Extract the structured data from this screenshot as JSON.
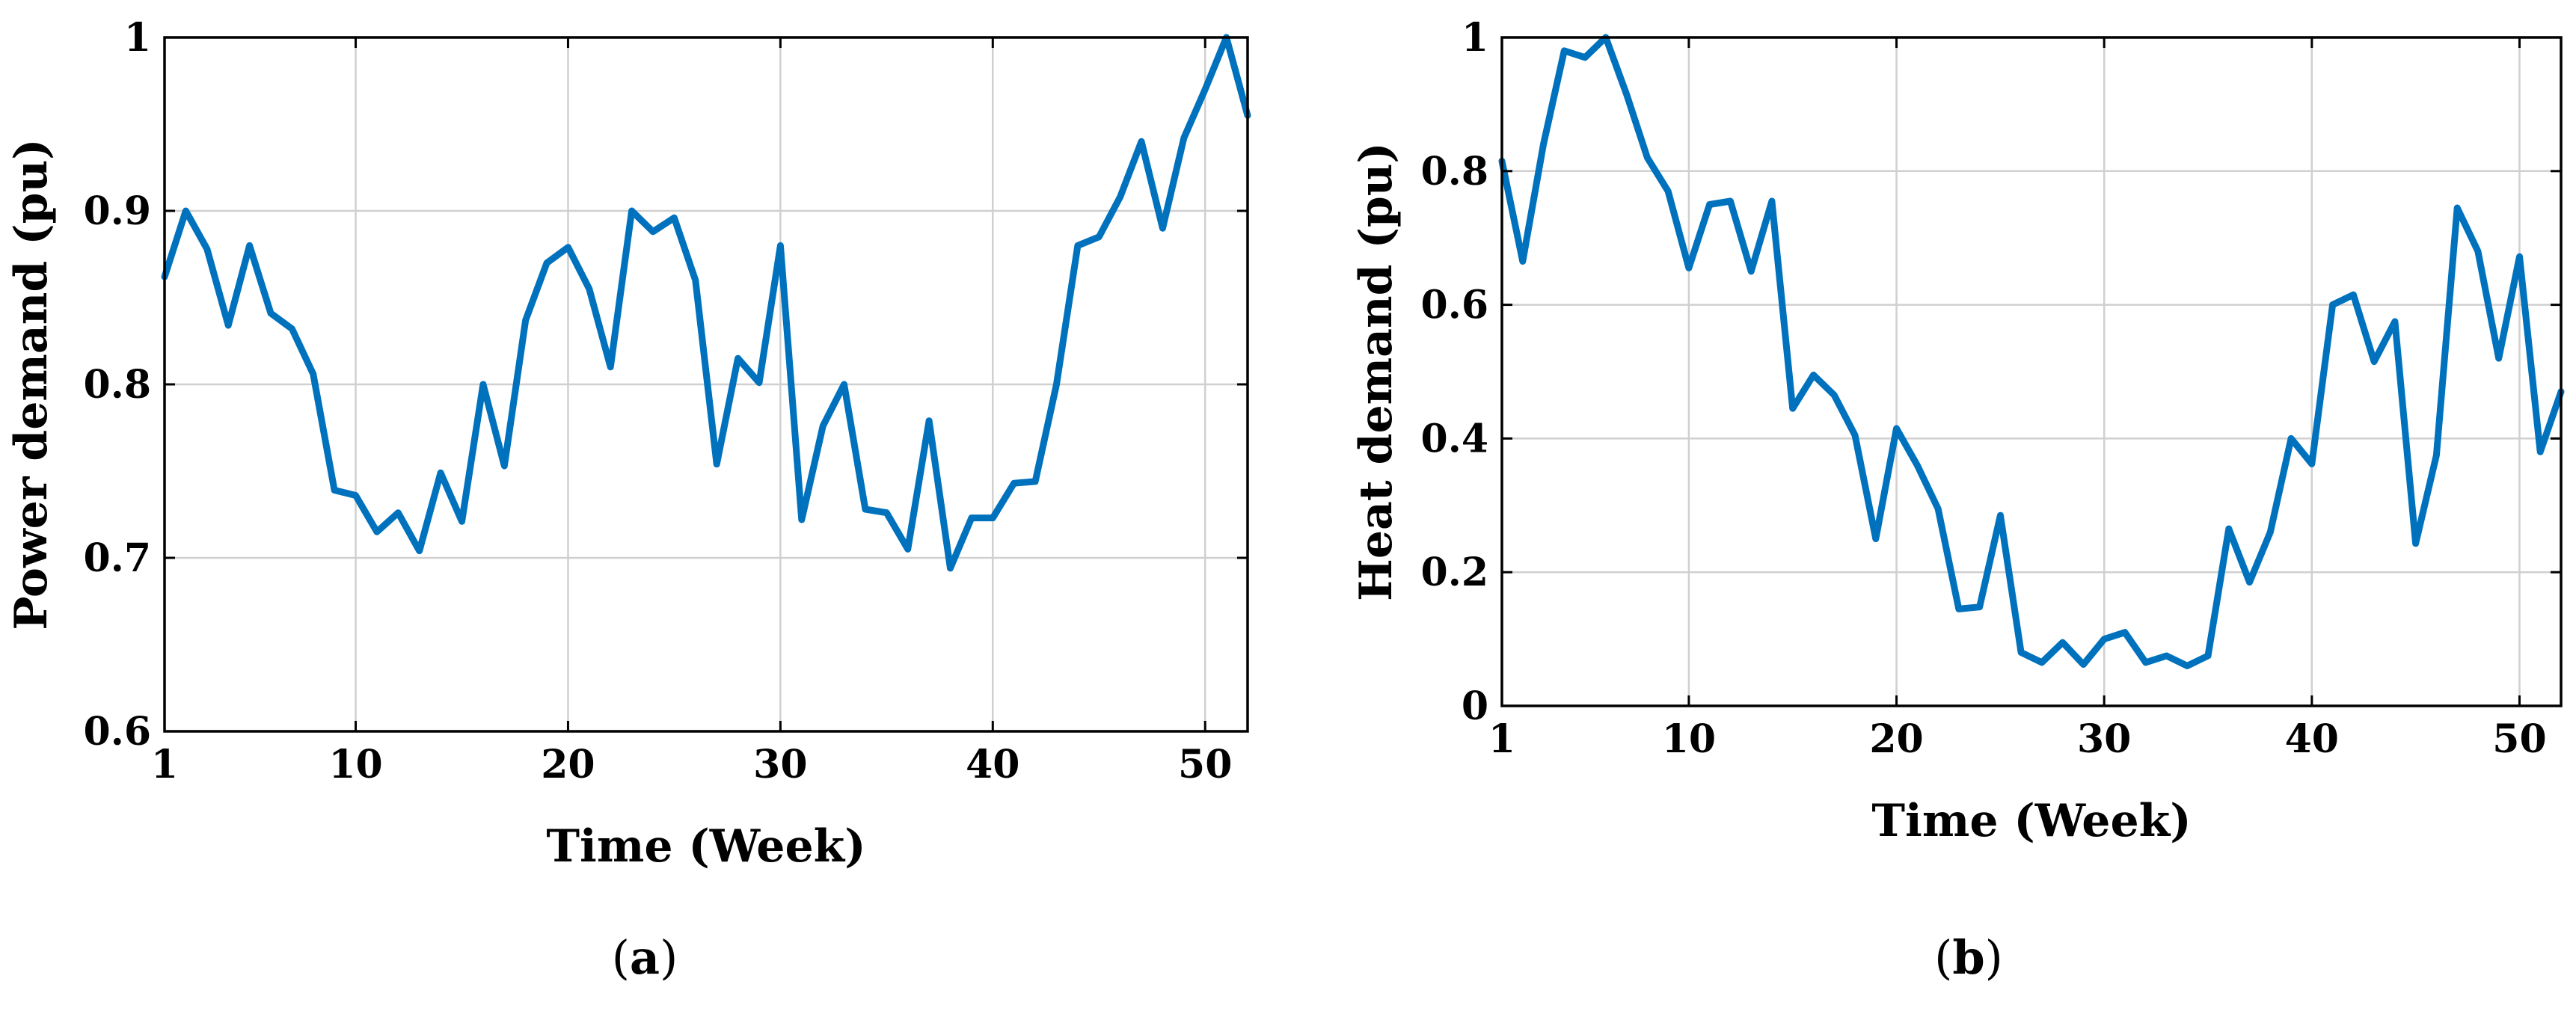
{
  "colors": {
    "series": "#0072BD",
    "grid": "#d0d0d0",
    "axes": "#000000"
  },
  "chart_data": [
    {
      "type": "line",
      "panel": "a",
      "caption_open": "(",
      "caption_letter": "a",
      "caption_close": ")",
      "xlabel": "Time (Week)",
      "ylabel": "Power demand (pu)",
      "xlim": [
        1,
        52
      ],
      "ylim": [
        0.6,
        1
      ],
      "xticks": [
        1,
        10,
        20,
        30,
        40,
        50
      ],
      "xtick_labels": [
        "1",
        "10",
        "20",
        "30",
        "40",
        "50"
      ],
      "yticks": [
        0.6,
        0.7,
        0.8,
        0.9,
        1
      ],
      "ytick_labels": [
        "0.6",
        "0.7",
        "0.8",
        "0.9",
        "1"
      ],
      "grid": true,
      "x": [
        1,
        2,
        3,
        4,
        5,
        6,
        7,
        8,
        9,
        10,
        11,
        12,
        13,
        14,
        15,
        16,
        17,
        18,
        19,
        20,
        21,
        22,
        23,
        24,
        25,
        26,
        27,
        28,
        29,
        30,
        31,
        32,
        33,
        34,
        35,
        36,
        37,
        38,
        39,
        40,
        41,
        42,
        43,
        44,
        45,
        46,
        47,
        48,
        49,
        50,
        51,
        52
      ],
      "series": [
        {
          "values": [
            0.862,
            0.9,
            0.878,
            0.834,
            0.88,
            0.841,
            0.832,
            0.806,
            0.739,
            0.736,
            0.715,
            0.726,
            0.704,
            0.749,
            0.721,
            0.8,
            0.753,
            0.837,
            0.87,
            0.879,
            0.855,
            0.81,
            0.9,
            0.888,
            0.896,
            0.86,
            0.754,
            0.815,
            0.801,
            0.88,
            0.722,
            0.776,
            0.8,
            0.728,
            0.726,
            0.705,
            0.779,
            0.694,
            0.723,
            0.723,
            0.743,
            0.744,
            0.8,
            0.88,
            0.885,
            0.908,
            0.94,
            0.89,
            0.942,
            0.97,
            1.0,
            0.955
          ]
        }
      ]
    },
    {
      "type": "line",
      "panel": "b",
      "caption_open": "(",
      "caption_letter": "b",
      "caption_close": ")",
      "xlabel": "Time (Week)",
      "ylabel": "Heat demand (pu)",
      "xlim": [
        1,
        52
      ],
      "ylim": [
        0,
        1
      ],
      "xticks": [
        1,
        10,
        20,
        30,
        40,
        50
      ],
      "xtick_labels": [
        "1",
        "10",
        "20",
        "30",
        "40",
        "50"
      ],
      "yticks": [
        0,
        0.2,
        0.4,
        0.6,
        0.8,
        1
      ],
      "ytick_labels": [
        "0",
        "0.2",
        "0.4",
        "0.6",
        "0.8",
        "1"
      ],
      "grid": true,
      "x": [
        1,
        2,
        3,
        4,
        5,
        6,
        7,
        8,
        9,
        10,
        11,
        12,
        13,
        14,
        15,
        16,
        17,
        18,
        19,
        20,
        21,
        22,
        23,
        24,
        25,
        26,
        27,
        28,
        29,
        30,
        31,
        32,
        33,
        34,
        35,
        36,
        37,
        38,
        39,
        40,
        41,
        42,
        43,
        44,
        45,
        46,
        47,
        48,
        49,
        50,
        51,
        52
      ],
      "series": [
        {
          "values": [
            0.815,
            0.665,
            0.84,
            0.98,
            0.97,
            1.0,
            0.915,
            0.82,
            0.77,
            0.655,
            0.75,
            0.755,
            0.65,
            0.755,
            0.445,
            0.495,
            0.465,
            0.405,
            0.25,
            0.415,
            0.36,
            0.295,
            0.145,
            0.148,
            0.285,
            0.08,
            0.065,
            0.095,
            0.062,
            0.1,
            0.11,
            0.065,
            0.075,
            0.06,
            0.075,
            0.265,
            0.185,
            0.26,
            0.4,
            0.362,
            0.6,
            0.615,
            0.515,
            0.575,
            0.243,
            0.375,
            0.745,
            0.68,
            0.52,
            0.672,
            0.38,
            0.47
          ]
        }
      ]
    }
  ]
}
